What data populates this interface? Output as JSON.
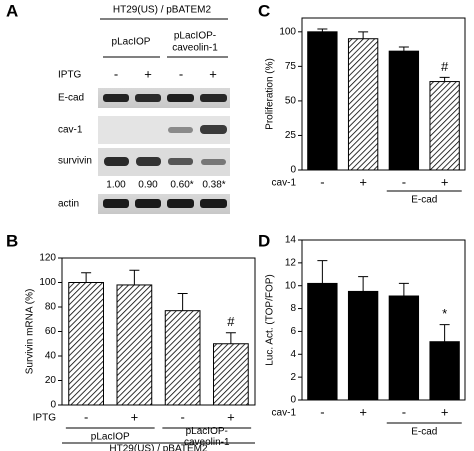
{
  "panel_a": {
    "letter": "A",
    "header": "HT29(US) / pBATEM2",
    "groups": [
      [
        "pLacIOP"
      ],
      [
        "pLacIOP-",
        "caveolin-1"
      ]
    ],
    "row_label": "IPTG",
    "signs": [
      "-",
      "+",
      "-",
      "+"
    ],
    "blots": [
      "E-cad",
      "cav-1",
      "survivin",
      "actin"
    ],
    "quantification": [
      "1.00",
      "0.90",
      "0.60*",
      "0.38*"
    ]
  },
  "chart_data": [
    {
      "type": "bar",
      "letter": "B",
      "y_label": "Survivin mRNA (%)",
      "row_label": "IPTG",
      "categories": [
        "-",
        "+",
        "-",
        "+"
      ],
      "values": [
        100,
        98,
        77,
        50
      ],
      "errors": [
        8,
        12,
        14,
        9
      ],
      "patterns": [
        "hatch",
        "hatch",
        "hatch",
        "hatch"
      ],
      "color": "#000000",
      "value_annotations": [
        null,
        null,
        null,
        "#"
      ],
      "groups": [
        [
          "pLacIOP"
        ],
        [
          "pLacIOP-",
          "caveolin-1"
        ]
      ],
      "footer": "HT29(US) / pBATEM2",
      "ylim": [
        0,
        120
      ],
      "yticks": [
        0,
        20,
        40,
        60,
        80,
        100,
        120
      ]
    },
    {
      "type": "bar",
      "letter": "C",
      "y_label": "Proliferation (%)",
      "row_label": "cav-1",
      "categories": [
        "-",
        "+",
        "-",
        "+"
      ],
      "values": [
        100,
        95,
        86,
        64
      ],
      "errors": [
        2,
        5,
        3,
        3
      ],
      "patterns": [
        "solid",
        "hatch",
        "solid",
        "hatch"
      ],
      "color": "#000000",
      "value_annotations": [
        null,
        null,
        null,
        "#"
      ],
      "groups": [
        [
          "E-cad"
        ]
      ],
      "ylim": [
        0,
        110
      ],
      "yticks": [
        0,
        25,
        50,
        75,
        100
      ]
    },
    {
      "type": "bar",
      "letter": "D",
      "y_label": "Luc. Act. (TOP/FOP)",
      "row_label": "cav-1",
      "categories": [
        "-",
        "+",
        "-",
        "+"
      ],
      "values": [
        10.2,
        9.5,
        9.1,
        5.1
      ],
      "errors": [
        2.0,
        1.3,
        1.1,
        1.5
      ],
      "patterns": [
        "solid",
        "solid",
        "solid",
        "solid"
      ],
      "color": "#000000",
      "value_annotations": [
        null,
        null,
        null,
        "*"
      ],
      "groups": [
        [
          "E-cad"
        ]
      ],
      "ylim": [
        0,
        14
      ],
      "yticks": [
        0,
        2,
        4,
        6,
        8,
        10,
        12,
        14
      ]
    }
  ]
}
